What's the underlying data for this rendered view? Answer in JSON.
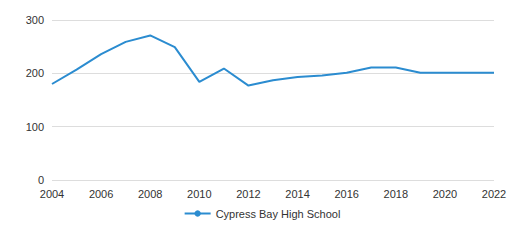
{
  "chart_data": {
    "type": "line",
    "x": [
      2004,
      2005,
      2006,
      2007,
      2008,
      2009,
      2010,
      2011,
      2012,
      2013,
      2014,
      2015,
      2016,
      2017,
      2018,
      2019,
      2020,
      2021,
      2022
    ],
    "series": [
      {
        "name": "Cypress Bay High School",
        "color": "#2b8cd0",
        "values": [
          180,
          207,
          236,
          259,
          271,
          249,
          184,
          209,
          177,
          187,
          193,
          196,
          201,
          211,
          211,
          201,
          201,
          201,
          201
        ]
      }
    ],
    "xlim": [
      2004,
      2022
    ],
    "xticks": [
      2004,
      2006,
      2008,
      2010,
      2012,
      2014,
      2016,
      2018,
      2020,
      2022
    ],
    "ylim": [
      0,
      300
    ],
    "yticks": [
      0,
      100,
      200,
      300
    ],
    "grid": true,
    "legend": "bottom"
  }
}
